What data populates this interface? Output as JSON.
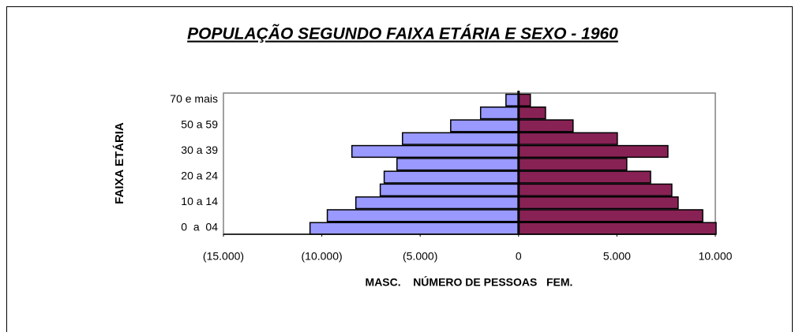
{
  "chart_data": {
    "type": "pyramid",
    "title": "POPULAÇÃO SEGUNDO FAIXA ETÁRIA E SEXO - 1960",
    "xlabel": "MASC.    NÚMERO DE PESSOAS   FEM.",
    "ylabel": "FAIXA ETÁRIA",
    "categories": [
      "0  a  04",
      null,
      "10 a 14",
      null,
      "20 a 24",
      null,
      "30 a 39",
      null,
      "50 a 59",
      null,
      "70 e mais"
    ],
    "series": [
      {
        "color": "#9999ff",
        "values": [
          -10600,
          -9720,
          -8270,
          -7030,
          -6830,
          -6180,
          -8470,
          -5900,
          -3450,
          -1930,
          -640
        ]
      },
      {
        "color": "#882255",
        "values": [
          10040,
          9360,
          8110,
          7790,
          6710,
          5500,
          7590,
          5020,
          2770,
          1370,
          600
        ]
      }
    ],
    "xlim": [
      -15000,
      10000
    ],
    "xticks": [
      {
        "value": -15000,
        "label": "(15.000)"
      },
      {
        "value": -10000,
        "label": "(10.000)"
      },
      {
        "value": -5000,
        "label": "(5.000)"
      },
      0,
      {
        "value": 5000,
        "label": "5.000"
      },
      {
        "value": 10000,
        "label": "10.000"
      }
    ]
  }
}
